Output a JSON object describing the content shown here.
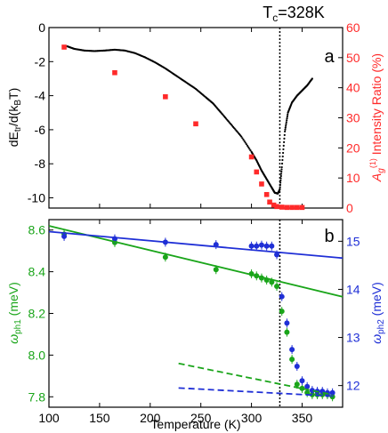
{
  "colors": {
    "black": "#000000",
    "red": "#ff2a2a",
    "green": "#1aa51a",
    "blue": "#1f2fd6"
  },
  "top_title": "T",
  "top_title_sub": "c",
  "top_title_rest": "=328K",
  "chart_data": [
    {
      "type": "scatter",
      "panel_label": "a",
      "xlim": [
        100,
        390
      ],
      "ylim_left": [
        -10.6,
        0
      ],
      "ylim_right": [
        0,
        60
      ],
      "left_ticks": [
        0,
        -2,
        -4,
        -6,
        -8,
        -10
      ],
      "right_ticks": [
        0,
        10,
        20,
        30,
        40,
        50,
        60
      ],
      "ylabel_left_main": "dE",
      "ylabel_left_sub": "tr",
      "ylabel_left_rest": "/d(k",
      "ylabel_left_sub2": "B",
      "ylabel_left_end": "T)",
      "ylabel_right_A": "A",
      "ylabel_right_g": "g",
      "ylabel_right_sup": "(1)",
      "ylabel_right_rest": " Intensity Ratio (%)",
      "vline_x": 328,
      "series": [
        {
          "axis": "left",
          "color": "black",
          "style": "dots",
          "x": [
            118,
            125,
            135,
            145,
            155,
            165,
            175,
            185,
            195,
            205,
            215,
            225,
            235,
            245,
            255,
            262,
            270,
            280,
            290,
            300,
            305,
            310,
            315,
            320,
            323,
            326,
            328,
            330,
            333,
            336,
            340,
            345,
            350,
            355,
            360
          ],
          "y": [
            -1.1,
            -1.25,
            -1.35,
            -1.38,
            -1.35,
            -1.3,
            -1.35,
            -1.5,
            -1.75,
            -2.05,
            -2.4,
            -2.8,
            -3.2,
            -3.6,
            -4.1,
            -4.45,
            -5.0,
            -5.7,
            -6.4,
            -7.3,
            -7.8,
            -8.4,
            -8.9,
            -9.4,
            -9.7,
            -9.75,
            -9.5,
            -8.2,
            -6.1,
            -5.0,
            -4.4,
            -4.0,
            -3.7,
            -3.4,
            -3.0
          ]
        },
        {
          "axis": "right",
          "color": "red",
          "style": "markers",
          "x": [
            115,
            165,
            215,
            245,
            300,
            305,
            310,
            315,
            318,
            322,
            325,
            330,
            335,
            340,
            345,
            350
          ],
          "y": [
            53.5,
            45,
            37,
            28,
            17,
            12,
            8,
            4.5,
            2,
            1,
            0.5,
            0.3,
            0.2,
            0.2,
            0.2,
            0.2
          ]
        }
      ]
    },
    {
      "type": "scatter",
      "panel_label": "b",
      "xlim": [
        100,
        390
      ],
      "ylim_left": [
        7.75,
        8.65
      ],
      "ylim_right": [
        11.55,
        15.45
      ],
      "left_ticks": [
        7.8,
        8.0,
        8.2,
        8.4,
        8.6
      ],
      "right_ticks": [
        12,
        13,
        14,
        15
      ],
      "x_ticks": [
        100,
        150,
        200,
        250,
        300,
        350
      ],
      "xlabel": "Temperature (K)",
      "ylabel_left_main": "ω",
      "ylabel_left_sub": "ph1",
      "ylabel_left_rest": " (meV)",
      "ylabel_right_main": "ω",
      "ylabel_right_sub": "ph2",
      "ylabel_right_rest": " (meV)",
      "vline_x": 328,
      "series": [
        {
          "axis": "left",
          "color": "green",
          "style": "markers",
          "x": [
            115,
            165,
            215,
            265,
            300,
            305,
            310,
            315,
            320,
            325,
            330,
            335,
            340,
            345,
            350,
            355,
            360,
            365,
            370,
            375,
            380
          ],
          "y": [
            8.58,
            8.54,
            8.47,
            8.41,
            8.39,
            8.38,
            8.37,
            8.36,
            8.35,
            8.33,
            8.21,
            8.11,
            7.98,
            7.86,
            7.84,
            7.82,
            7.81,
            7.81,
            7.81,
            7.81,
            7.8
          ]
        },
        {
          "axis": "right",
          "color": "blue",
          "style": "markers",
          "x": [
            115,
            165,
            215,
            265,
            300,
            305,
            310,
            315,
            320,
            325,
            330,
            335,
            340,
            345,
            350,
            355,
            360,
            365,
            370,
            375,
            380
          ],
          "y": [
            15.1,
            15.05,
            14.98,
            14.93,
            14.9,
            14.9,
            14.92,
            14.9,
            14.9,
            14.72,
            13.85,
            13.3,
            12.75,
            12.4,
            12.1,
            11.98,
            11.9,
            11.88,
            11.88,
            11.85,
            11.85
          ]
        },
        {
          "axis": "left",
          "color": "green",
          "style": "solid-line",
          "x": [
            100,
            390
          ],
          "y": [
            8.62,
            8.28
          ]
        },
        {
          "axis": "right",
          "color": "blue",
          "style": "solid-line",
          "x": [
            100,
            390
          ],
          "y": [
            15.2,
            14.65
          ]
        },
        {
          "axis": "left",
          "color": "green",
          "style": "dashed-line",
          "x": [
            228,
            380
          ],
          "y": [
            7.96,
            7.81
          ]
        },
        {
          "axis": "right",
          "color": "blue",
          "style": "dashed-line",
          "x": [
            228,
            380
          ],
          "y": [
            11.95,
            11.78
          ]
        }
      ]
    }
  ]
}
